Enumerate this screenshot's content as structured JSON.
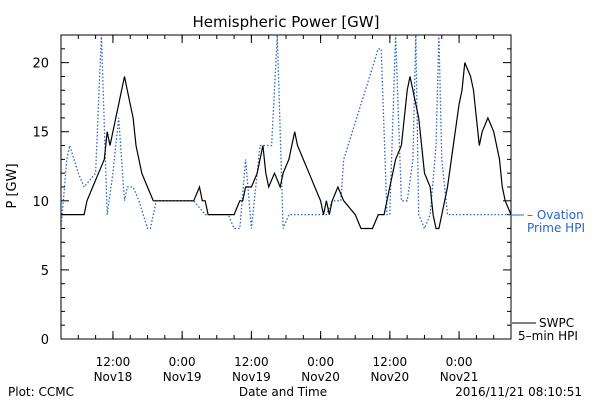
{
  "chart_data": {
    "type": "line",
    "title": "Hemispheric Power [GW]",
    "ylabel": "P [GW]",
    "xlabel": "Date and Time",
    "ylim": [
      0,
      22
    ],
    "y_ticks": [
      0,
      5,
      10,
      15,
      20
    ],
    "x_ticks": [
      {
        "time": "2016-11-18 12:00",
        "line1": "12:00",
        "line2": "Nov18"
      },
      {
        "time": "2016-11-19 00:00",
        "line1": "0:00",
        "line2": "Nov19"
      },
      {
        "time": "2016-11-19 12:00",
        "line1": "12:00",
        "line2": "Nov19"
      },
      {
        "time": "2016-11-20 00:00",
        "line1": "0:00",
        "line2": "Nov20"
      },
      {
        "time": "2016-11-20 12:00",
        "line1": "12:00",
        "line2": "Nov20"
      },
      {
        "time": "2016-11-21 00:00",
        "line1": "0:00",
        "line2": "Nov21"
      }
    ],
    "xlim": [
      "2016-11-18 03:00",
      "2016-11-21 09:00"
    ],
    "grid": false,
    "series": [
      {
        "name": "Ovation Prime HPI",
        "legend_lines": [
          "– Ovation",
          "Prime HPI"
        ],
        "color": "#2a64c8",
        "style": "dotted",
        "x": [
          "2016-11-18 03:00",
          "2016-11-18 04:00",
          "2016-11-18 04:30",
          "2016-11-18 06:00",
          "2016-11-18 07:00",
          "2016-11-18 09:00",
          "2016-11-18 10:00",
          "2016-11-18 11:00",
          "2016-11-18 12:00",
          "2016-11-18 13:00",
          "2016-11-18 14:00",
          "2016-11-18 14:30",
          "2016-11-18 15:30",
          "2016-11-18 16:30",
          "2016-11-18 18:00",
          "2016-11-18 18:30",
          "2016-11-18 19:30",
          "2016-11-18 21:00",
          "2016-11-18 22:00",
          "2016-11-19 00:00",
          "2016-11-19 01:00",
          "2016-11-19 02:00",
          "2016-11-19 04:00",
          "2016-11-19 06:00",
          "2016-11-19 08:00",
          "2016-11-19 09:00",
          "2016-11-19 10:00",
          "2016-11-19 11:00",
          "2016-11-19 12:00",
          "2016-11-19 13:00",
          "2016-11-19 13:30",
          "2016-11-19 14:30",
          "2016-11-19 15:30",
          "2016-11-19 16:30",
          "2016-11-19 17:30",
          "2016-11-19 18:30",
          "2016-11-19 19:30",
          "2016-11-19 20:30",
          "2016-11-19 21:30",
          "2016-11-19 22:00",
          "2016-11-20 00:00",
          "2016-11-20 01:00",
          "2016-11-20 02:00",
          "2016-11-20 03:00",
          "2016-11-20 03:30",
          "2016-11-20 04:00",
          "2016-11-20 07:00",
          "2016-11-20 10:00",
          "2016-11-20 10:30",
          "2016-11-20 11:30",
          "2016-11-20 12:00",
          "2016-11-20 13:00",
          "2016-11-20 14:00",
          "2016-11-20 15:00",
          "2016-11-20 16:00",
          "2016-11-20 16:30",
          "2016-11-20 17:00",
          "2016-11-20 18:00",
          "2016-11-20 19:00",
          "2016-11-20 20:00",
          "2016-11-20 20:30",
          "2016-11-20 21:00",
          "2016-11-20 22:00",
          "2016-11-21 00:00",
          "2016-11-21 04:00",
          "2016-11-21 06:00",
          "2016-11-21 09:00"
        ],
        "y": [
          8,
          13,
          14,
          12,
          11,
          12,
          22,
          9,
          12,
          16,
          10,
          11,
          11,
          10,
          8,
          8,
          10,
          10,
          10,
          10,
          10,
          10,
          9,
          9,
          9,
          8,
          8,
          13,
          8,
          12,
          14,
          14,
          14,
          22,
          8,
          9,
          9,
          9,
          9,
          9,
          9,
          9,
          10,
          10,
          10,
          13,
          17,
          21,
          21,
          9,
          9,
          22,
          10,
          10,
          13,
          22,
          9,
          8,
          9,
          14,
          22,
          13,
          9,
          9,
          9,
          9,
          9
        ]
      },
      {
        "name": "SWPC 5-min HPI",
        "legend_lines": [
          "SWPC",
          "5–min HPI"
        ],
        "color": "#000000",
        "style": "solid",
        "x": [
          "2016-11-18 03:00",
          "2016-11-18 07:00",
          "2016-11-18 07:30",
          "2016-11-18 08:30",
          "2016-11-18 09:30",
          "2016-11-18 10:30",
          "2016-11-18 11:00",
          "2016-11-18 11:30",
          "2016-11-18 12:30",
          "2016-11-18 13:00",
          "2016-11-18 13:30",
          "2016-11-18 14:00",
          "2016-11-18 14:30",
          "2016-11-18 15:00",
          "2016-11-18 15:30",
          "2016-11-18 16:00",
          "2016-11-18 16:30",
          "2016-11-18 17:00",
          "2016-11-18 18:00",
          "2016-11-18 19:00",
          "2016-11-18 21:00",
          "2016-11-18 22:00",
          "2016-11-19 00:00",
          "2016-11-19 02:00",
          "2016-11-19 03:00",
          "2016-11-19 03:30",
          "2016-11-19 04:00",
          "2016-11-19 04:30",
          "2016-11-19 06:00",
          "2016-11-19 09:00",
          "2016-11-19 10:00",
          "2016-11-19 10:30",
          "2016-11-19 11:00",
          "2016-11-19 12:00",
          "2016-11-19 13:00",
          "2016-11-19 13:30",
          "2016-11-19 14:00",
          "2016-11-19 14:30",
          "2016-11-19 15:00",
          "2016-11-19 16:00",
          "2016-11-19 17:00",
          "2016-11-19 17:30",
          "2016-11-19 18:30",
          "2016-11-19 19:00",
          "2016-11-19 19:30",
          "2016-11-19 20:00",
          "2016-11-19 21:00",
          "2016-11-19 22:00",
          "2016-11-19 23:00",
          "2016-11-20 00:00",
          "2016-11-20 00:30",
          "2016-11-20 01:00",
          "2016-11-20 01:30",
          "2016-11-20 02:00",
          "2016-11-20 03:00",
          "2016-11-20 04:00",
          "2016-11-20 06:00",
          "2016-11-20 07:00",
          "2016-11-20 08:00",
          "2016-11-20 09:00",
          "2016-11-20 10:00",
          "2016-11-20 11:00",
          "2016-11-20 12:00",
          "2016-11-20 12:30",
          "2016-11-20 13:00",
          "2016-11-20 14:00",
          "2016-11-20 14:30",
          "2016-11-20 15:00",
          "2016-11-20 15:30",
          "2016-11-20 16:00",
          "2016-11-20 17:00",
          "2016-11-20 17:30",
          "2016-11-20 18:00",
          "2016-11-20 19:00",
          "2016-11-20 19:30",
          "2016-11-20 20:00",
          "2016-11-20 20:30",
          "2016-11-20 21:00",
          "2016-11-20 22:00",
          "2016-11-20 23:00",
          "2016-11-21 00:00",
          "2016-11-21 00:30",
          "2016-11-21 01:00",
          "2016-11-21 02:00",
          "2016-11-21 02:30",
          "2016-11-21 03:00",
          "2016-11-21 03:30",
          "2016-11-21 04:00",
          "2016-11-21 05:00",
          "2016-11-21 06:00",
          "2016-11-21 07:00",
          "2016-11-21 07:30",
          "2016-11-21 08:00",
          "2016-11-21 09:00"
        ],
        "y": [
          9,
          9,
          10,
          11,
          12,
          13,
          15,
          14,
          16,
          17,
          18,
          19,
          18,
          17,
          16,
          14,
          13,
          12,
          11,
          10,
          10,
          10,
          10,
          10,
          11,
          10,
          10,
          9,
          9,
          9,
          10,
          10,
          11,
          11,
          12,
          13,
          14,
          12,
          11,
          12,
          11,
          12,
          13,
          14,
          15,
          14,
          13,
          12,
          11,
          10,
          9,
          10,
          9,
          10,
          11,
          10,
          9,
          8,
          8,
          8,
          9,
          9,
          11,
          12,
          13,
          14,
          16,
          18,
          19,
          18,
          16,
          14,
          12,
          11,
          9,
          8,
          8,
          9,
          11,
          14,
          17,
          18,
          20,
          19,
          18,
          16,
          14,
          15,
          16,
          15,
          13,
          11,
          10,
          9
        ]
      }
    ],
    "footer": {
      "left": "Plot: CCMC",
      "right": "2016/11/21 08:10:51"
    }
  }
}
